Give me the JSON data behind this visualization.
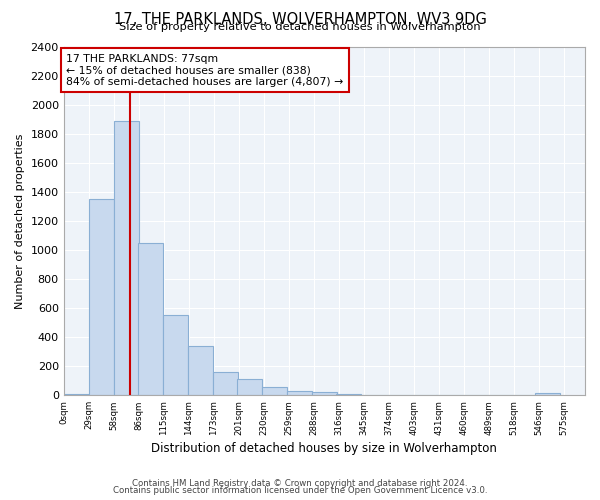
{
  "title": "17, THE PARKLANDS, WOLVERHAMPTON, WV3 9DG",
  "subtitle": "Size of property relative to detached houses in Wolverhampton",
  "xlabel": "Distribution of detached houses by size in Wolverhampton",
  "ylabel": "Number of detached properties",
  "bar_color": "#c8d9ee",
  "bar_edge_color": "#8aafd4",
  "bins_left": [
    0,
    29,
    58,
    86,
    115,
    144,
    173,
    201,
    230,
    259,
    288,
    316,
    345,
    374,
    403,
    431,
    460,
    489,
    518,
    546
  ],
  "bin_width": 29,
  "bar_heights": [
    10,
    1350,
    1890,
    1050,
    550,
    340,
    160,
    110,
    60,
    30,
    25,
    10,
    5,
    3,
    2,
    1,
    0,
    0,
    0,
    15
  ],
  "tick_labels": [
    "0sqm",
    "29sqm",
    "58sqm",
    "86sqm",
    "115sqm",
    "144sqm",
    "173sqm",
    "201sqm",
    "230sqm",
    "259sqm",
    "288sqm",
    "316sqm",
    "345sqm",
    "374sqm",
    "403sqm",
    "431sqm",
    "460sqm",
    "489sqm",
    "518sqm",
    "546sqm",
    "575sqm"
  ],
  "ylim": [
    0,
    2400
  ],
  "yticks": [
    0,
    200,
    400,
    600,
    800,
    1000,
    1200,
    1400,
    1600,
    1800,
    2000,
    2200,
    2400
  ],
  "vline_x": 77,
  "vline_color": "#cc0000",
  "annotation_title": "17 THE PARKLANDS: 77sqm",
  "annotation_line1": "← 15% of detached houses are smaller (838)",
  "annotation_line2": "84% of semi-detached houses are larger (4,807) →",
  "annotation_box_color": "#ffffff",
  "annotation_box_edge": "#cc0000",
  "footer1": "Contains HM Land Registry data © Crown copyright and database right 2024.",
  "footer2": "Contains public sector information licensed under the Open Government Licence v3.0.",
  "background_color": "#ffffff",
  "plot_bg_color": "#eef3f9",
  "grid_color": "#ffffff"
}
